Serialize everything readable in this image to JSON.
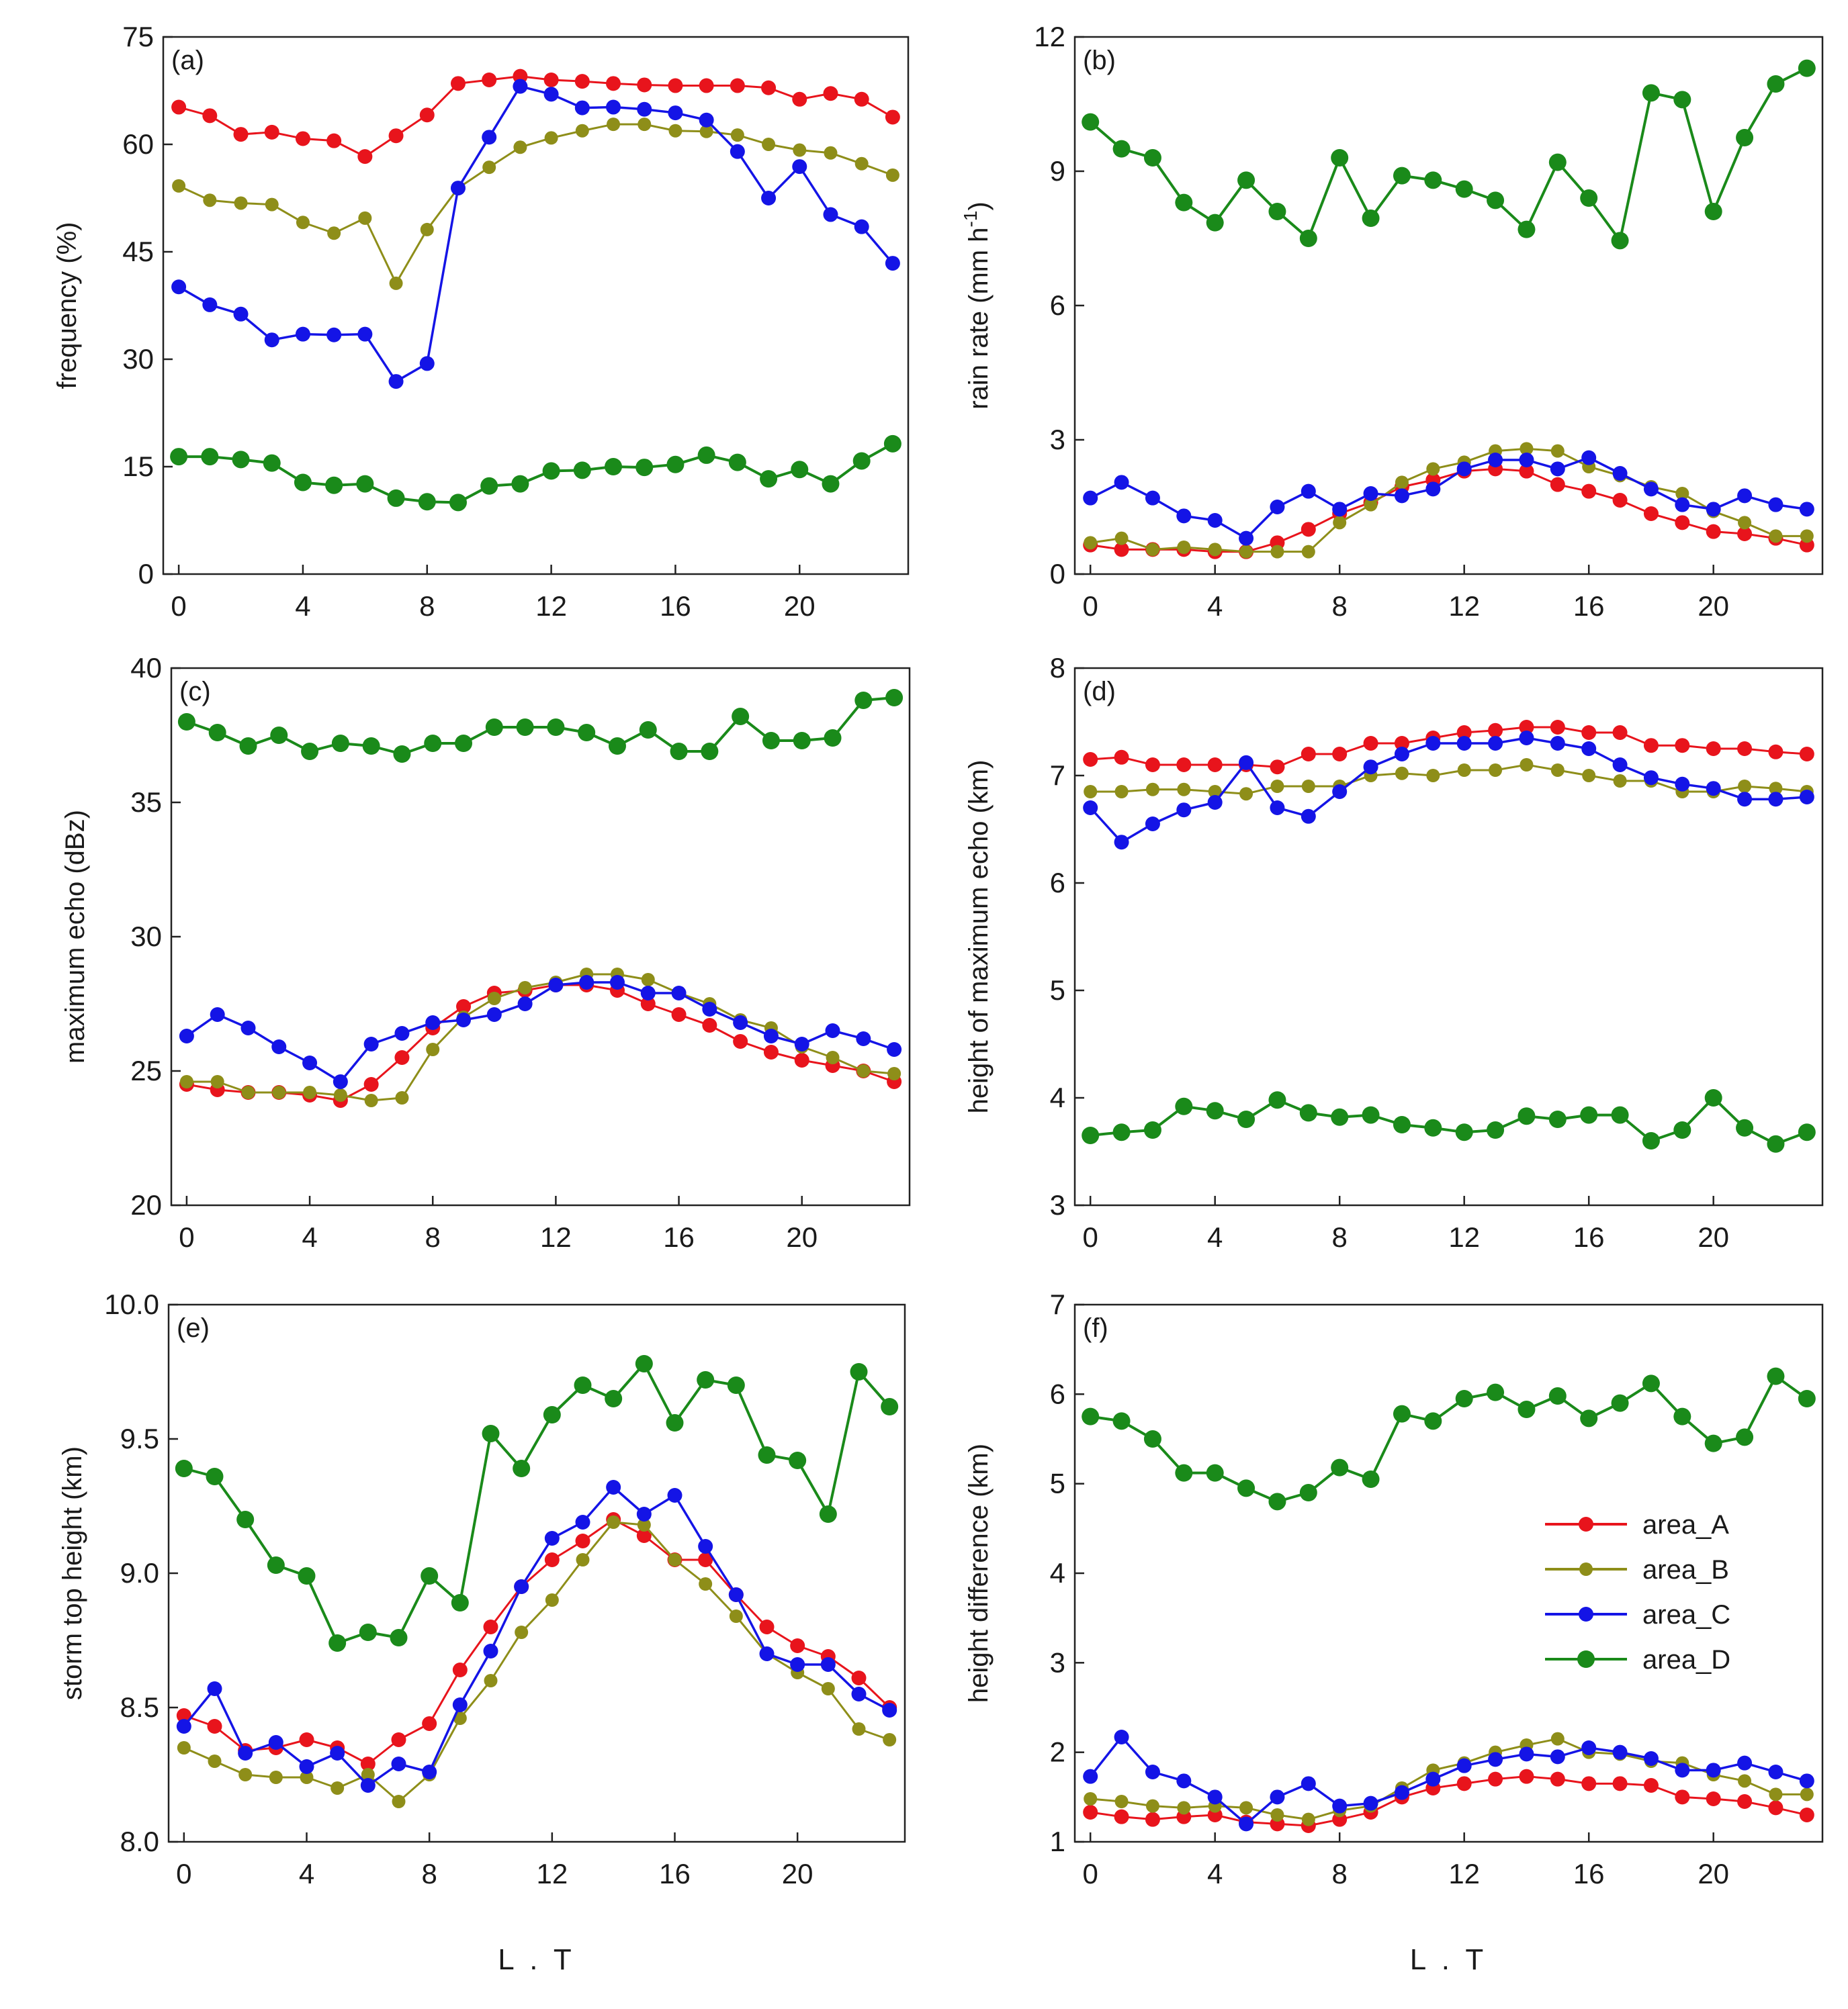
{
  "colors": {
    "area_A": "#e8141c",
    "area_B": "#8e8e19",
    "area_C": "#1414e6",
    "area_D": "#1a8a1a"
  },
  "chart_data": [
    {
      "type": "line",
      "panel": "(a)",
      "ylabel": "frequency (%)",
      "xlabel": "",
      "xlim": [
        -0.5,
        23.5
      ],
      "ylim": [
        0,
        75
      ],
      "yticks": [
        0,
        15,
        30,
        45,
        60,
        75
      ],
      "xticks": [
        0,
        4,
        8,
        12,
        16,
        20
      ],
      "x": [
        0,
        1,
        2,
        3,
        4,
        5,
        6,
        7,
        8,
        9,
        10,
        11,
        12,
        13,
        14,
        15,
        16,
        17,
        18,
        19,
        20,
        21,
        22,
        23
      ],
      "series": [
        {
          "name": "area_A",
          "values": [
            65.2,
            64.0,
            61.4,
            61.7,
            60.8,
            60.5,
            58.3,
            61.2,
            64.1,
            68.5,
            69.0,
            69.5,
            69.0,
            68.8,
            68.5,
            68.3,
            68.2,
            68.2,
            68.2,
            67.9,
            66.3,
            67.1,
            66.3,
            63.8
          ]
        },
        {
          "name": "area_B",
          "values": [
            54.2,
            52.2,
            51.8,
            51.6,
            49.1,
            47.6,
            49.7,
            40.6,
            48.1,
            53.9,
            56.8,
            59.6,
            60.9,
            61.9,
            62.8,
            62.8,
            61.9,
            61.8,
            61.3,
            60.0,
            59.2,
            58.8,
            57.3,
            55.7
          ]
        },
        {
          "name": "area_C",
          "values": [
            40.1,
            37.6,
            36.3,
            32.7,
            33.5,
            33.4,
            33.5,
            26.9,
            29.4,
            53.9,
            61.0,
            68.1,
            67.0,
            65.1,
            65.2,
            64.9,
            64.4,
            63.4,
            59.0,
            52.5,
            56.9,
            50.2,
            48.5,
            43.4
          ]
        },
        {
          "name": "area_D",
          "values": [
            16.4,
            16.4,
            16.0,
            15.5,
            12.8,
            12.4,
            12.6,
            10.6,
            10.1,
            10.0,
            12.3,
            12.6,
            14.4,
            14.5,
            15.0,
            14.9,
            15.3,
            16.6,
            15.6,
            13.3,
            14.6,
            12.6,
            15.8,
            18.2
          ]
        }
      ]
    },
    {
      "type": "line",
      "panel": "(b)",
      "ylabel": "rain rate (mm h-1)",
      "xlabel": "",
      "xlim": [
        -0.5,
        23.5
      ],
      "ylim": [
        0,
        12
      ],
      "yticks": [
        0,
        3,
        6,
        9,
        12
      ],
      "xticks": [
        0,
        4,
        8,
        12,
        16,
        20
      ],
      "x": [
        0,
        1,
        2,
        3,
        4,
        5,
        6,
        7,
        8,
        9,
        10,
        11,
        12,
        13,
        14,
        15,
        16,
        17,
        18,
        19,
        20,
        21,
        22,
        23
      ],
      "series": [
        {
          "name": "area_A",
          "values": [
            0.65,
            0.55,
            0.55,
            0.55,
            0.5,
            0.5,
            0.7,
            1.0,
            1.35,
            1.6,
            1.95,
            2.1,
            2.3,
            2.35,
            2.3,
            2.0,
            1.85,
            1.65,
            1.35,
            1.15,
            0.95,
            0.9,
            0.8,
            0.65
          ]
        },
        {
          "name": "area_B",
          "values": [
            0.7,
            0.8,
            0.55,
            0.6,
            0.55,
            0.5,
            0.5,
            0.5,
            1.15,
            1.55,
            2.05,
            2.35,
            2.5,
            2.75,
            2.8,
            2.75,
            2.4,
            2.2,
            1.95,
            1.8,
            1.4,
            1.15,
            0.85,
            0.85
          ]
        },
        {
          "name": "area_C",
          "values": [
            1.7,
            2.05,
            1.7,
            1.3,
            1.2,
            0.8,
            1.5,
            1.85,
            1.45,
            1.8,
            1.75,
            1.9,
            2.35,
            2.55,
            2.55,
            2.35,
            2.6,
            2.25,
            1.9,
            1.55,
            1.45,
            1.75,
            1.55,
            1.45
          ]
        },
        {
          "name": "area_D",
          "values": [
            10.1,
            9.5,
            9.3,
            8.3,
            7.85,
            8.8,
            8.1,
            7.5,
            9.3,
            7.95,
            8.9,
            8.8,
            8.6,
            8.35,
            7.7,
            9.2,
            8.4,
            7.45,
            10.75,
            10.6,
            8.1,
            9.75,
            10.95,
            11.3
          ]
        }
      ]
    },
    {
      "type": "line",
      "panel": "(c)",
      "ylabel": "maximum echo (dBz)",
      "xlabel": "",
      "xlim": [
        -0.5,
        23.5
      ],
      "ylim": [
        20,
        40
      ],
      "yticks": [
        20,
        25,
        30,
        35,
        40
      ],
      "xticks": [
        0,
        4,
        8,
        12,
        16,
        20
      ],
      "x": [
        0,
        1,
        2,
        3,
        4,
        5,
        6,
        7,
        8,
        9,
        10,
        11,
        12,
        13,
        14,
        15,
        16,
        17,
        18,
        19,
        20,
        21,
        22,
        23
      ],
      "series": [
        {
          "name": "area_A",
          "values": [
            24.5,
            24.3,
            24.2,
            24.2,
            24.1,
            23.9,
            24.5,
            25.5,
            26.6,
            27.4,
            27.9,
            28.0,
            28.2,
            28.2,
            28.0,
            27.5,
            27.1,
            26.7,
            26.1,
            25.7,
            25.4,
            25.2,
            25.0,
            24.6
          ]
        },
        {
          "name": "area_B",
          "values": [
            24.6,
            24.6,
            24.2,
            24.2,
            24.2,
            24.1,
            23.9,
            24.0,
            25.8,
            27.0,
            27.7,
            28.1,
            28.3,
            28.6,
            28.6,
            28.4,
            27.9,
            27.5,
            26.9,
            26.6,
            25.9,
            25.5,
            25.0,
            24.9
          ]
        },
        {
          "name": "area_C",
          "values": [
            26.3,
            27.1,
            26.6,
            25.9,
            25.3,
            24.6,
            26.0,
            26.4,
            26.8,
            26.9,
            27.1,
            27.5,
            28.2,
            28.3,
            28.3,
            27.9,
            27.9,
            27.3,
            26.8,
            26.3,
            26.0,
            26.5,
            26.2,
            25.8
          ]
        },
        {
          "name": "area_D",
          "values": [
            38.0,
            37.6,
            37.1,
            37.5,
            36.9,
            37.2,
            37.1,
            36.8,
            37.2,
            37.2,
            37.8,
            37.8,
            37.8,
            37.6,
            37.1,
            37.7,
            36.9,
            36.9,
            38.2,
            37.3,
            37.3,
            37.4,
            38.8,
            38.9
          ]
        }
      ]
    },
    {
      "type": "line",
      "panel": "(d)",
      "ylabel": "height of maximum echo (km)",
      "xlabel": "",
      "xlim": [
        -0.5,
        23.5
      ],
      "ylim": [
        3,
        8
      ],
      "yticks": [
        3,
        4,
        5,
        6,
        7,
        8
      ],
      "xticks": [
        0,
        4,
        8,
        12,
        16,
        20
      ],
      "x": [
        0,
        1,
        2,
        3,
        4,
        5,
        6,
        7,
        8,
        9,
        10,
        11,
        12,
        13,
        14,
        15,
        16,
        17,
        18,
        19,
        20,
        21,
        22,
        23
      ],
      "series": [
        {
          "name": "area_A",
          "values": [
            7.15,
            7.17,
            7.1,
            7.1,
            7.1,
            7.1,
            7.08,
            7.2,
            7.2,
            7.3,
            7.3,
            7.35,
            7.4,
            7.42,
            7.45,
            7.45,
            7.4,
            7.4,
            7.28,
            7.28,
            7.25,
            7.25,
            7.22,
            7.2
          ]
        },
        {
          "name": "area_B",
          "values": [
            6.85,
            6.85,
            6.87,
            6.87,
            6.85,
            6.83,
            6.9,
            6.9,
            6.9,
            7.0,
            7.02,
            7.0,
            7.05,
            7.05,
            7.1,
            7.05,
            7.0,
            6.95,
            6.95,
            6.85,
            6.85,
            6.9,
            6.88,
            6.85
          ]
        },
        {
          "name": "area_C",
          "values": [
            6.7,
            6.38,
            6.55,
            6.68,
            6.75,
            7.12,
            6.7,
            6.62,
            6.85,
            7.08,
            7.2,
            7.3,
            7.3,
            7.3,
            7.35,
            7.3,
            7.25,
            7.1,
            6.98,
            6.92,
            6.88,
            6.78,
            6.78,
            6.8
          ]
        },
        {
          "name": "area_D",
          "values": [
            3.65,
            3.68,
            3.7,
            3.92,
            3.88,
            3.8,
            3.98,
            3.86,
            3.82,
            3.84,
            3.75,
            3.72,
            3.68,
            3.7,
            3.83,
            3.8,
            3.84,
            3.84,
            3.6,
            3.7,
            4.0,
            3.72,
            3.57,
            3.68
          ]
        }
      ]
    },
    {
      "type": "line",
      "panel": "(e)",
      "ylabel": "storm top height (km)",
      "xlabel": "L . T",
      "xlim": [
        -0.5,
        23.5
      ],
      "ylim": [
        8.0,
        10.0
      ],
      "yticks": [
        "8.0",
        "8.5",
        "9.0",
        "9.5",
        "10.0"
      ],
      "xticks": [
        0,
        4,
        8,
        12,
        16,
        20
      ],
      "x": [
        0,
        1,
        2,
        3,
        4,
        5,
        6,
        7,
        8,
        9,
        10,
        11,
        12,
        13,
        14,
        15,
        16,
        17,
        18,
        19,
        20,
        21,
        22,
        23
      ],
      "series": [
        {
          "name": "area_A",
          "values": [
            8.47,
            8.43,
            8.34,
            8.35,
            8.38,
            8.35,
            8.29,
            8.38,
            8.44,
            8.64,
            8.8,
            8.95,
            9.05,
            9.12,
            9.2,
            9.14,
            9.05,
            9.05,
            8.92,
            8.8,
            8.73,
            8.69,
            8.61,
            8.5
          ]
        },
        {
          "name": "area_B",
          "values": [
            8.35,
            8.3,
            8.25,
            8.24,
            8.24,
            8.2,
            8.25,
            8.15,
            8.25,
            8.46,
            8.6,
            8.78,
            8.9,
            9.05,
            9.19,
            9.18,
            9.05,
            8.96,
            8.84,
            8.7,
            8.63,
            8.57,
            8.42,
            8.38
          ]
        },
        {
          "name": "area_C",
          "values": [
            8.43,
            8.57,
            8.33,
            8.37,
            8.28,
            8.33,
            8.21,
            8.29,
            8.26,
            8.51,
            8.71,
            8.95,
            9.13,
            9.19,
            9.32,
            9.22,
            9.29,
            9.1,
            8.92,
            8.7,
            8.66,
            8.66,
            8.55,
            8.49
          ]
        },
        {
          "name": "area_D",
          "values": [
            9.39,
            9.36,
            9.2,
            9.03,
            8.99,
            8.74,
            8.78,
            8.76,
            8.99,
            8.89,
            9.52,
            9.39,
            9.59,
            9.7,
            9.65,
            9.78,
            9.56,
            9.72,
            9.7,
            9.44,
            9.42,
            9.22,
            9.75,
            9.62
          ]
        }
      ]
    },
    {
      "type": "line",
      "panel": "(f)",
      "ylabel": "height difference (km)",
      "xlabel": "L . T",
      "xlim": [
        -0.5,
        23.5
      ],
      "ylim": [
        1,
        7
      ],
      "yticks": [
        1,
        2,
        3,
        4,
        5,
        6,
        7
      ],
      "xticks": [
        0,
        4,
        8,
        12,
        16,
        20
      ],
      "x": [
        0,
        1,
        2,
        3,
        4,
        5,
        6,
        7,
        8,
        9,
        10,
        11,
        12,
        13,
        14,
        15,
        16,
        17,
        18,
        19,
        20,
        21,
        22,
        23
      ],
      "legend": {
        "location": "middle-right",
        "entries": [
          "area_A",
          "area_B",
          "area_C",
          "area_D"
        ]
      },
      "series": [
        {
          "name": "area_A",
          "values": [
            1.33,
            1.28,
            1.25,
            1.28,
            1.3,
            1.22,
            1.2,
            1.18,
            1.25,
            1.33,
            1.5,
            1.6,
            1.65,
            1.7,
            1.73,
            1.7,
            1.65,
            1.65,
            1.63,
            1.5,
            1.48,
            1.45,
            1.38,
            1.3
          ]
        },
        {
          "name": "area_B",
          "values": [
            1.48,
            1.45,
            1.4,
            1.38,
            1.4,
            1.38,
            1.3,
            1.25,
            1.35,
            1.4,
            1.6,
            1.8,
            1.88,
            2.0,
            2.08,
            2.15,
            2.0,
            1.98,
            1.9,
            1.88,
            1.75,
            1.68,
            1.53,
            1.53
          ]
        },
        {
          "name": "area_C",
          "values": [
            1.73,
            2.17,
            1.78,
            1.68,
            1.5,
            1.2,
            1.5,
            1.65,
            1.4,
            1.43,
            1.55,
            1.7,
            1.85,
            1.92,
            1.98,
            1.95,
            2.05,
            2.0,
            1.93,
            1.8,
            1.8,
            1.88,
            1.78,
            1.68
          ]
        },
        {
          "name": "area_D",
          "values": [
            5.75,
            5.7,
            5.5,
            5.12,
            5.12,
            4.95,
            4.8,
            4.9,
            5.18,
            5.05,
            5.78,
            5.7,
            5.95,
            6.02,
            5.83,
            5.98,
            5.73,
            5.9,
            6.12,
            5.75,
            5.45,
            5.52,
            6.2,
            5.95
          ]
        }
      ]
    }
  ]
}
